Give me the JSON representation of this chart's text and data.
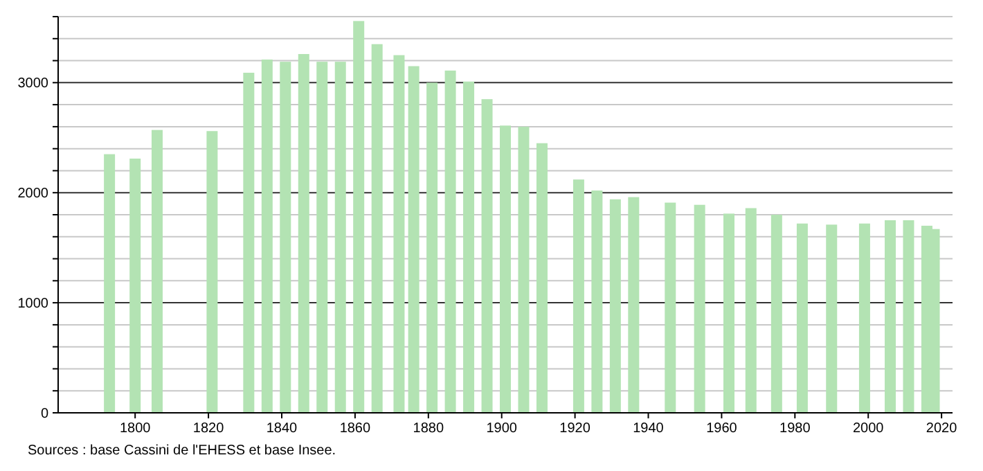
{
  "chart_data": {
    "type": "bar",
    "x": [
      1793,
      1800,
      1806,
      1821,
      1831,
      1836,
      1841,
      1846,
      1851,
      1856,
      1861,
      1866,
      1872,
      1876,
      1881,
      1886,
      1891,
      1896,
      1901,
      1906,
      1911,
      1921,
      1926,
      1931,
      1936,
      1946,
      1954,
      1962,
      1968,
      1975,
      1982,
      1990,
      1999,
      2006,
      2011,
      2016,
      2018
    ],
    "values": [
      2350,
      2310,
      2570,
      2560,
      3090,
      3210,
      3190,
      3260,
      3190,
      3190,
      3560,
      3350,
      3250,
      3150,
      3000,
      3110,
      3010,
      2850,
      2610,
      2600,
      2450,
      2120,
      2020,
      1940,
      1960,
      1910,
      1890,
      1810,
      1860,
      1800,
      1720,
      1710,
      1720,
      1750,
      1750,
      1700,
      1670
    ],
    "color": "#b3e3b3",
    "xlim": [
      1779,
      2023
    ],
    "xticks": [
      1800,
      1820,
      1840,
      1860,
      1880,
      1900,
      1920,
      1940,
      1960,
      1980,
      2000,
      2020
    ],
    "ylim": [
      0,
      3600
    ],
    "yticks": [
      0,
      {
        "value": 200,
        "label": null
      },
      {
        "value": 400,
        "label": null
      },
      {
        "value": 600,
        "label": null
      },
      {
        "value": 800,
        "label": null
      },
      1000,
      {
        "value": 1200,
        "label": null
      },
      {
        "value": 1400,
        "label": null
      },
      {
        "value": 1600,
        "label": null
      },
      {
        "value": 1800,
        "label": null
      },
      2000,
      {
        "value": 2200,
        "label": null
      },
      {
        "value": 2400,
        "label": null
      },
      {
        "value": 2600,
        "label": null
      },
      {
        "value": 2800,
        "label": null
      },
      3000,
      {
        "value": 3200,
        "label": null
      },
      {
        "value": 3400,
        "label": null
      },
      {
        "value": 3600,
        "label": null
      }
    ],
    "grid": "y",
    "annotations": [
      "Sources : base Cassini de l'EHESS et base Insee."
    ]
  }
}
